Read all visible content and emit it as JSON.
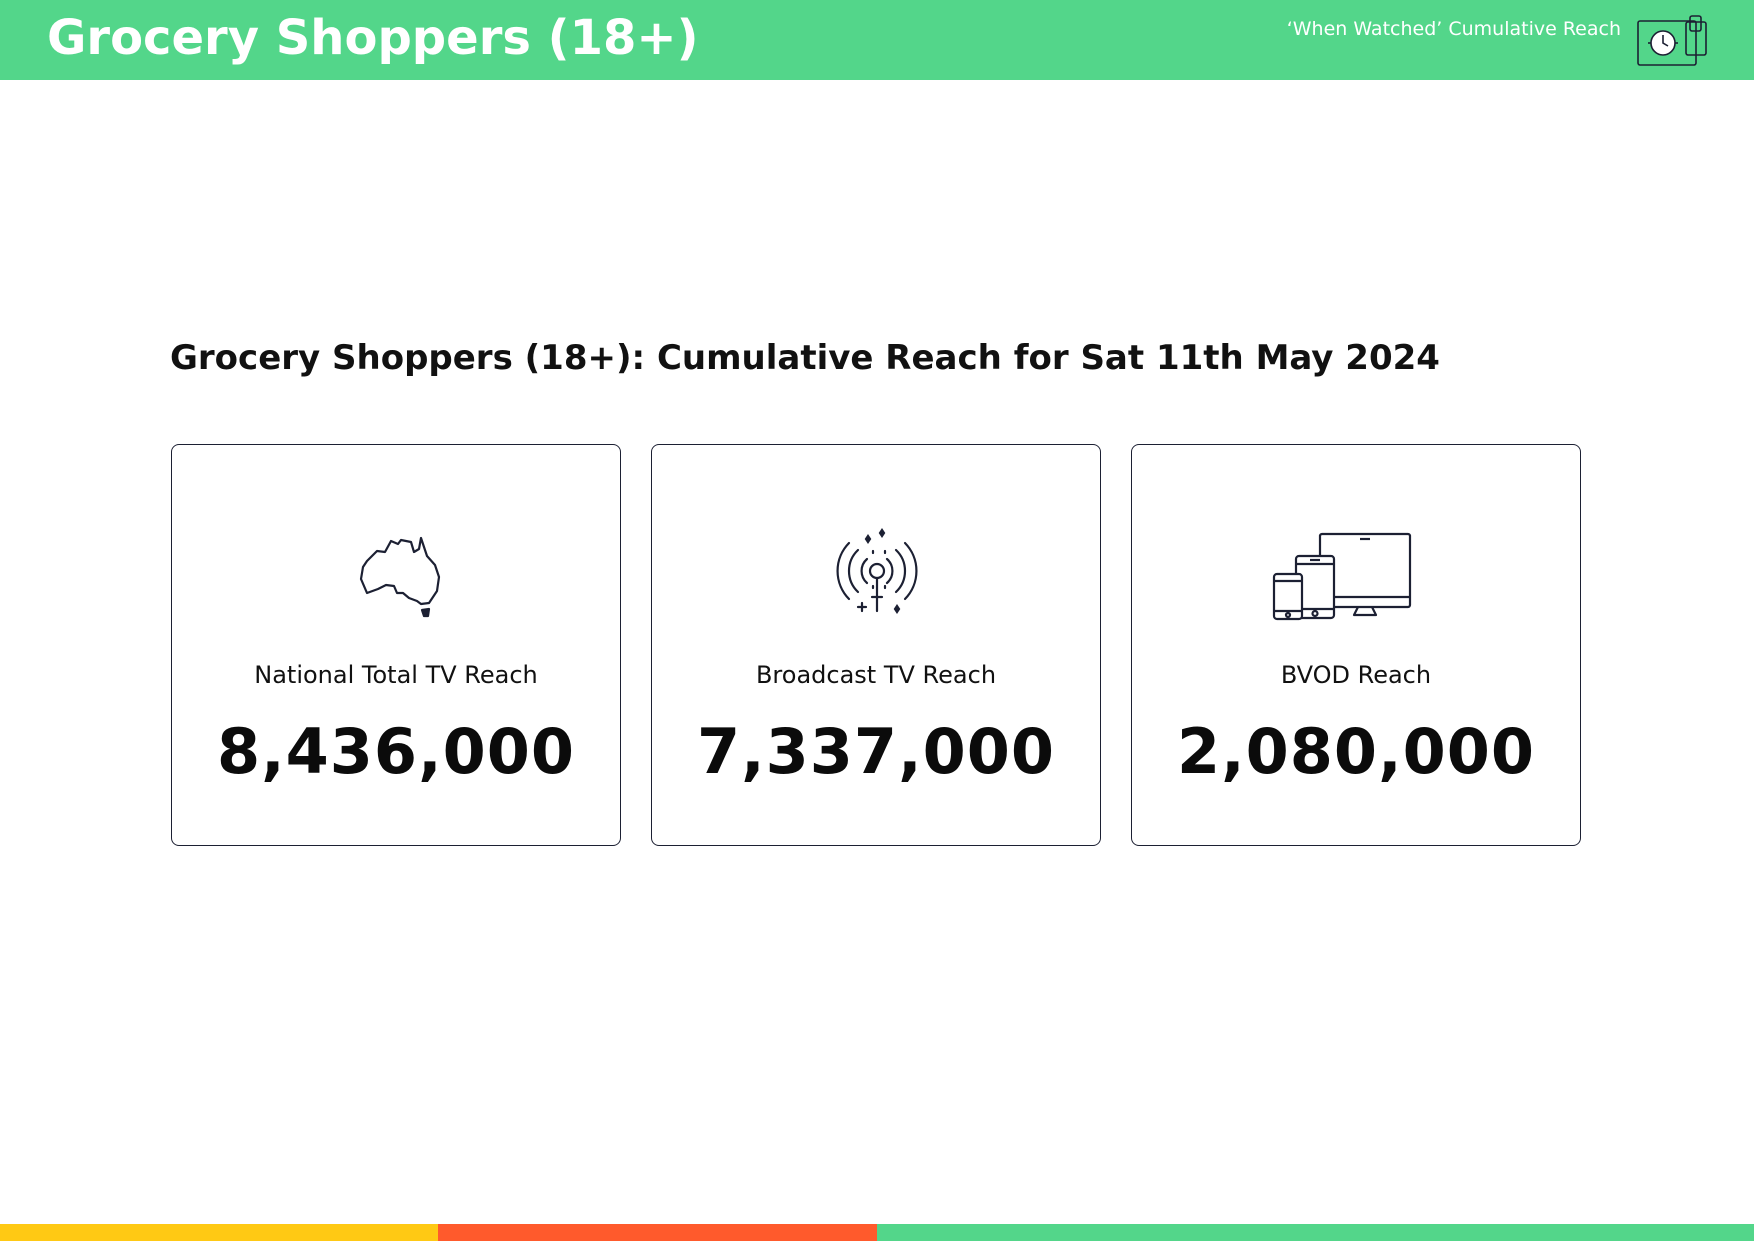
{
  "header": {
    "title": "Grocery Shoppers (18+)",
    "subtitle": "‘When Watched’ Cumulative Reach",
    "icon": "clock-devices-icon",
    "color": "#53D68A"
  },
  "main": {
    "title": "Grocery Shoppers (18+): Cumulative Reach for Sat 11th May 2024",
    "cards": [
      {
        "label": "National Total TV Reach",
        "value": "8,436,000",
        "icon": "australia-map-icon"
      },
      {
        "label": "Broadcast TV Reach",
        "value": "7,337,000",
        "icon": "broadcast-antenna-icon"
      },
      {
        "label": "BVOD Reach",
        "value": "2,080,000",
        "icon": "multi-device-icon"
      }
    ]
  },
  "footer": {
    "colors": [
      "#FFC914",
      "#FF5A2C",
      "#53D68A"
    ]
  }
}
